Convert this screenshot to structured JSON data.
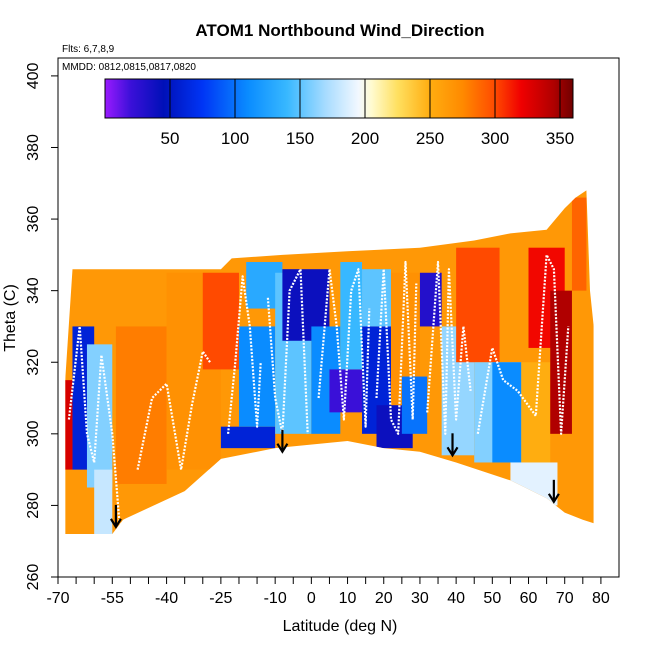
{
  "chart_data": {
    "type": "heatmap",
    "title": "ATOM1 Northbound Wind_Direction",
    "annotations": [
      "Flts: 6,7,8,9",
      "MMDD: 0812,0815,0817,0820"
    ],
    "xlabel": "Latitude (deg N)",
    "ylabel": "Theta (C)",
    "xlim": [
      -70,
      85
    ],
    "ylim": [
      260,
      405
    ],
    "x_ticks": [
      -70,
      -55,
      -40,
      -25,
      -10,
      0,
      10,
      20,
      30,
      40,
      50,
      60,
      70,
      80
    ],
    "x_minor_ticks": [
      -65,
      -60,
      -50,
      -45,
      -35,
      -30,
      -20,
      -15,
      -5,
      5,
      15,
      25,
      35,
      45,
      55,
      65,
      75
    ],
    "y_ticks": [
      260,
      280,
      300,
      320,
      340,
      360,
      380,
      400
    ],
    "colorbar": {
      "label_ticks": [
        50,
        100,
        150,
        200,
        250,
        300,
        350
      ],
      "range": [
        0,
        360
      ],
      "stops": [
        {
          "v": 0,
          "c": "#9a1aff"
        },
        {
          "v": 20,
          "c": "#3a10d8"
        },
        {
          "v": 45,
          "c": "#0010b8"
        },
        {
          "v": 75,
          "c": "#0035f5"
        },
        {
          "v": 110,
          "c": "#0a8cff"
        },
        {
          "v": 140,
          "c": "#38b8ff"
        },
        {
          "v": 170,
          "c": "#a8dcff"
        },
        {
          "v": 195,
          "c": "#f2f8ff"
        },
        {
          "v": 205,
          "c": "#fffbd0"
        },
        {
          "v": 225,
          "c": "#ffe060"
        },
        {
          "v": 250,
          "c": "#ffad10"
        },
        {
          "v": 275,
          "c": "#ff8a00"
        },
        {
          "v": 300,
          "c": "#ff4a00"
        },
        {
          "v": 320,
          "c": "#f00000"
        },
        {
          "v": 345,
          "c": "#b00000"
        },
        {
          "v": 360,
          "c": "#700000"
        }
      ]
    },
    "field": {
      "default_value": 265,
      "top_boundary": [
        [
          -68,
          315
        ],
        [
          -66,
          346
        ],
        [
          -45,
          346
        ],
        [
          -25,
          346
        ],
        [
          -22,
          349
        ],
        [
          -8,
          350
        ],
        [
          10,
          351
        ],
        [
          30,
          352
        ],
        [
          45,
          354
        ],
        [
          55,
          356
        ],
        [
          65,
          357
        ],
        [
          70,
          363
        ],
        [
          73,
          366
        ],
        [
          76,
          368
        ],
        [
          77,
          340
        ],
        [
          78,
          330
        ]
      ],
      "bottom_boundary": [
        [
          -68,
          272
        ],
        [
          -55,
          272
        ],
        [
          -52,
          276
        ],
        [
          -35,
          284
        ],
        [
          -25,
          293
        ],
        [
          -10,
          296
        ],
        [
          10,
          298
        ],
        [
          20,
          296
        ],
        [
          30,
          295
        ],
        [
          40,
          292
        ],
        [
          55,
          287
        ],
        [
          65,
          282
        ],
        [
          70,
          278
        ],
        [
          75,
          276
        ],
        [
          78,
          275
        ]
      ],
      "regions": [
        {
          "lat": [
            -66,
            -60
          ],
          "theta": [
            290,
            330
          ],
          "value": 60
        },
        {
          "lat": [
            -62,
            -55
          ],
          "theta": [
            285,
            325
          ],
          "value": 160
        },
        {
          "lat": [
            -68,
            -66
          ],
          "theta": [
            290,
            315
          ],
          "value": 330
        },
        {
          "lat": [
            -60,
            -55
          ],
          "theta": [
            272,
            290
          ],
          "value": 180
        },
        {
          "lat": [
            -54,
            -40
          ],
          "theta": [
            286,
            330
          ],
          "value": 280
        },
        {
          "lat": [
            -40,
            -25
          ],
          "theta": [
            290,
            345
          ],
          "value": 270
        },
        {
          "lat": [
            -30,
            -20
          ],
          "theta": [
            318,
            345
          ],
          "value": 300
        },
        {
          "lat": [
            -25,
            -10
          ],
          "theta": [
            296,
            302
          ],
          "value": 60
        },
        {
          "lat": [
            -20,
            -10
          ],
          "theta": [
            302,
            330
          ],
          "value": 110
        },
        {
          "lat": [
            -18,
            -8
          ],
          "theta": [
            335,
            348
          ],
          "value": 130
        },
        {
          "lat": [
            -10,
            0
          ],
          "theta": [
            300,
            345
          ],
          "value": 150
        },
        {
          "lat": [
            -8,
            5
          ],
          "theta": [
            326,
            346
          ],
          "value": 40
        },
        {
          "lat": [
            0,
            8
          ],
          "theta": [
            300,
            330
          ],
          "value": 110
        },
        {
          "lat": [
            5,
            14
          ],
          "theta": [
            306,
            318
          ],
          "value": 20
        },
        {
          "lat": [
            8,
            14
          ],
          "theta": [
            318,
            348
          ],
          "value": 140
        },
        {
          "lat": [
            14,
            24
          ],
          "theta": [
            300,
            330
          ],
          "value": 60
        },
        {
          "lat": [
            14,
            22
          ],
          "theta": [
            330,
            346
          ],
          "value": 150
        },
        {
          "lat": [
            18,
            28
          ],
          "theta": [
            296,
            308
          ],
          "value": 40
        },
        {
          "lat": [
            22,
            30
          ],
          "theta": [
            308,
            345
          ],
          "value": 270
        },
        {
          "lat": [
            25,
            32
          ],
          "theta": [
            300,
            316
          ],
          "value": 100
        },
        {
          "lat": [
            30,
            36
          ],
          "theta": [
            330,
            345
          ],
          "value": 30
        },
        {
          "lat": [
            36,
            45
          ],
          "theta": [
            294,
            330
          ],
          "value": 165
        },
        {
          "lat": [
            40,
            52
          ],
          "theta": [
            320,
            352
          ],
          "value": 300
        },
        {
          "lat": [
            45,
            58
          ],
          "theta": [
            292,
            320
          ],
          "value": 160
        },
        {
          "lat": [
            50,
            58
          ],
          "theta": [
            292,
            320
          ],
          "value": 110
        },
        {
          "lat": [
            58,
            66
          ],
          "theta": [
            292,
            320
          ],
          "value": 250
        },
        {
          "lat": [
            55,
            68
          ],
          "theta": [
            280,
            292
          ],
          "value": 190
        },
        {
          "lat": [
            60,
            70
          ],
          "theta": [
            324,
            352
          ],
          "value": 318
        },
        {
          "lat": [
            66,
            72
          ],
          "theta": [
            300,
            340
          ],
          "value": 345
        },
        {
          "lat": [
            72,
            76
          ],
          "theta": [
            340,
            366
          ],
          "value": 290
        }
      ]
    },
    "white_traces": [
      [
        [
          -67,
          304
        ],
        [
          -64,
          330
        ],
        [
          -62,
          300
        ],
        [
          -60,
          292
        ],
        [
          -58,
          322
        ],
        [
          -55,
          300
        ],
        [
          -53,
          275
        ]
      ],
      [
        [
          -48,
          290
        ],
        [
          -44,
          310
        ],
        [
          -40,
          314
        ],
        [
          -36,
          290
        ],
        [
          -33,
          308
        ],
        [
          -30,
          323
        ],
        [
          -28,
          320
        ]
      ],
      [
        [
          -23,
          300
        ],
        [
          -21,
          320
        ],
        [
          -19,
          344
        ],
        [
          -17,
          330
        ],
        [
          -15,
          302
        ],
        [
          -14,
          320
        ]
      ],
      [
        [
          -12,
          338
        ],
        [
          -10,
          310
        ],
        [
          -8,
          300
        ],
        [
          -6,
          340
        ],
        [
          -3,
          346
        ],
        [
          -1,
          300
        ]
      ],
      [
        [
          2,
          310
        ],
        [
          5,
          346
        ],
        [
          7,
          330
        ],
        [
          9,
          304
        ],
        [
          11,
          340
        ],
        [
          13,
          346
        ],
        [
          15,
          302
        ],
        [
          16,
          335
        ]
      ],
      [
        [
          18,
          310
        ],
        [
          20,
          346
        ],
        [
          22,
          304
        ],
        [
          24,
          300
        ],
        [
          26,
          348
        ],
        [
          28,
          304
        ],
        [
          29,
          342
        ]
      ],
      [
        [
          32,
          306
        ],
        [
          35,
          348
        ],
        [
          37,
          300
        ],
        [
          38,
          346
        ],
        [
          40,
          304
        ],
        [
          42,
          330
        ],
        [
          44,
          312
        ]
      ],
      [
        [
          46,
          300
        ],
        [
          50,
          324
        ],
        [
          53,
          315
        ],
        [
          57,
          312
        ],
        [
          62,
          305
        ],
        [
          65,
          350
        ],
        [
          67,
          346
        ],
        [
          69,
          300
        ],
        [
          71,
          330
        ]
      ]
    ],
    "arrows": [
      {
        "lat": -54,
        "theta": 274
      },
      {
        "lat": -8,
        "theta": 295
      },
      {
        "lat": 39,
        "theta": 294
      },
      {
        "lat": 67,
        "theta": 281
      }
    ]
  }
}
